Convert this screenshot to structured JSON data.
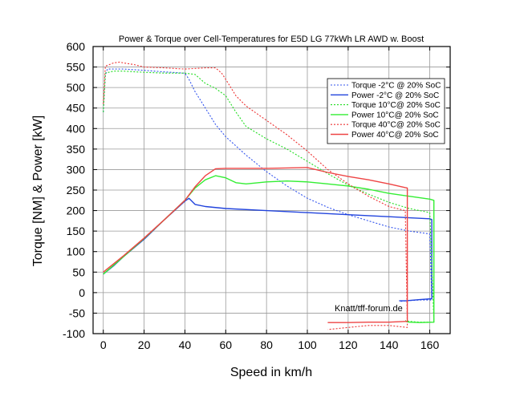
{
  "chart_data": {
    "type": "line",
    "title": "Power & Torque over Cell-Temperatures for E5D LG 77kWh LR AWD w. Boost",
    "xlabel": "Speed in km/h",
    "ylabel": "Torque [NM] & Power [kW]",
    "xlim": [
      -5,
      170
    ],
    "ylim": [
      -100,
      600
    ],
    "xticks": [
      "0",
      "20",
      "40",
      "60",
      "80",
      "100",
      "120",
      "140",
      "160"
    ],
    "yticks": [
      "-100",
      "-50",
      "0",
      "50",
      "100",
      "150",
      "200",
      "250",
      "300",
      "350",
      "400",
      "450",
      "500",
      "550",
      "600"
    ],
    "grid": true,
    "legend_position": "top-right",
    "annotation": "Knatt/tff-forum.de",
    "series": [
      {
        "name": "Torque -2°C @ 20% SoC",
        "color": "#3355ee",
        "dashed": true,
        "x": [
          0,
          1,
          2,
          5,
          10,
          20,
          30,
          40,
          42,
          45,
          50,
          55,
          60,
          70,
          80,
          90,
          100,
          110,
          120,
          130,
          140,
          150,
          160,
          161,
          161,
          155,
          148,
          145
        ],
        "y": [
          440,
          530,
          545,
          545,
          545,
          542,
          538,
          535,
          520,
          490,
          450,
          410,
          380,
          335,
          295,
          260,
          230,
          208,
          190,
          175,
          160,
          150,
          143,
          -15,
          -18,
          -18,
          -20,
          -22
        ]
      },
      {
        "name": "Power -2°C @ 20% SoC",
        "color": "#2244dd",
        "dashed": false,
        "x": [
          0,
          5,
          10,
          20,
          30,
          40,
          42,
          45,
          50,
          60,
          80,
          100,
          120,
          140,
          160,
          161,
          161,
          155,
          148,
          145
        ],
        "y": [
          45,
          65,
          88,
          130,
          178,
          223,
          230,
          215,
          210,
          205,
          200,
          195,
          190,
          185,
          180,
          178,
          -15,
          -17,
          -20,
          -20
        ]
      },
      {
        "name": "Torque 10°C@ 20% SoC",
        "color": "#22dd22",
        "dashed": true,
        "x": [
          0,
          1,
          5,
          10,
          20,
          30,
          40,
          45,
          50,
          55,
          60,
          65,
          70,
          80,
          90,
          100,
          110,
          120,
          130,
          140,
          150,
          160,
          162,
          162,
          155,
          150,
          148
        ],
        "y": [
          440,
          535,
          540,
          540,
          537,
          535,
          535,
          532,
          510,
          498,
          480,
          440,
          405,
          375,
          350,
          320,
          290,
          262,
          240,
          220,
          205,
          195,
          -70,
          -72,
          -72,
          -70,
          -68
        ]
      },
      {
        "name": "Power 10°C@ 20% SoC",
        "color": "#33ee33",
        "dashed": false,
        "x": [
          0,
          10,
          20,
          30,
          40,
          45,
          50,
          55,
          60,
          65,
          70,
          80,
          90,
          100,
          110,
          120,
          130,
          140,
          150,
          160,
          162,
          162,
          155,
          150,
          148
        ],
        "y": [
          45,
          88,
          132,
          178,
          225,
          255,
          275,
          285,
          280,
          268,
          265,
          270,
          272,
          270,
          265,
          260,
          252,
          242,
          235,
          228,
          225,
          -72,
          -73,
          -72,
          -70
        ]
      },
      {
        "name": "Torque 40°C@ 20% SoC",
        "color": "#ee3333",
        "dashed": true,
        "x": [
          0,
          1,
          5,
          8,
          10,
          15,
          20,
          30,
          40,
          50,
          55,
          58,
          60,
          65,
          70,
          80,
          90,
          100,
          110,
          120,
          130,
          140,
          148,
          149,
          149,
          140,
          130,
          120,
          110
        ],
        "y": [
          460,
          552,
          560,
          562,
          560,
          556,
          550,
          548,
          545,
          548,
          548,
          535,
          520,
          480,
          455,
          420,
          385,
          345,
          300,
          265,
          235,
          210,
          200,
          -80,
          -85,
          -80,
          -80,
          -85,
          -90
        ]
      },
      {
        "name": "Power 40°C@ 20% SoC",
        "color": "#ee4444",
        "dashed": false,
        "x": [
          0,
          10,
          20,
          30,
          40,
          45,
          50,
          55,
          60,
          70,
          80,
          90,
          100,
          110,
          120,
          130,
          140,
          148,
          149,
          149,
          140,
          130,
          120,
          110
        ],
        "y": [
          50,
          90,
          133,
          178,
          225,
          258,
          285,
          302,
          303,
          303,
          303,
          304,
          305,
          293,
          283,
          275,
          265,
          256,
          255,
          -70,
          -72,
          -72,
          -73,
          -73
        ]
      }
    ]
  }
}
